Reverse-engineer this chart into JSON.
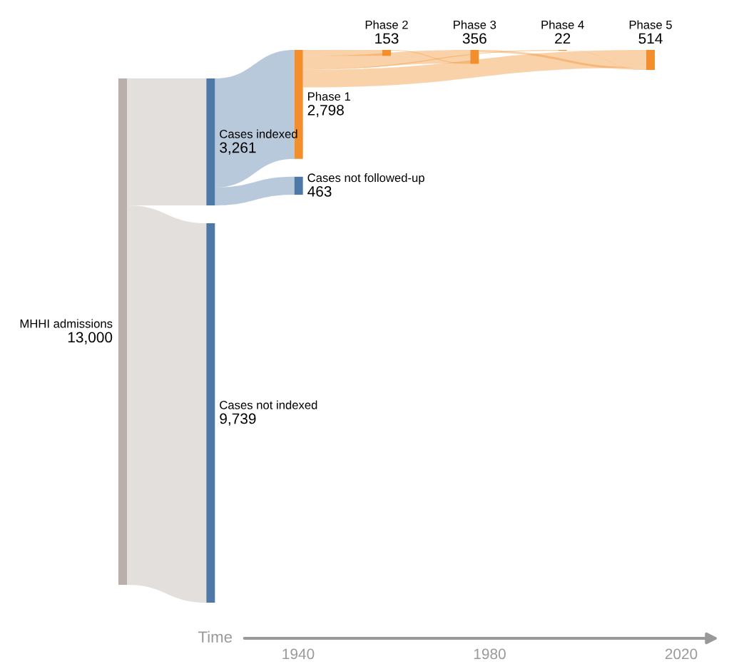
{
  "chart_data": {
    "type": "other",
    "categories": [
      "MHHI admissions",
      "Cases indexed",
      "Cases not indexed",
      "Phase 1",
      "Cases not followed-up",
      "Phase 2",
      "Phase 3",
      "Phase 4",
      "Phase 5"
    ],
    "values": [
      13000,
      3261,
      9739,
      2798,
      463,
      153,
      356,
      22,
      514
    ],
    "value_labels": [
      "13,000",
      "3,261",
      "9,739",
      "2,798",
      "463",
      "153",
      "356",
      "22",
      "514"
    ],
    "colors": [
      "#b9b0ab",
      "#4e79a7",
      "#4e79a7",
      "#f28e2b",
      "#4e79a7",
      "#f28e2b",
      "#f28e2b",
      "#f28e2b",
      "#f28e2b"
    ],
    "xlabel": "Time",
    "annotations": [
      "1940",
      "1980",
      "2020"
    ]
  }
}
